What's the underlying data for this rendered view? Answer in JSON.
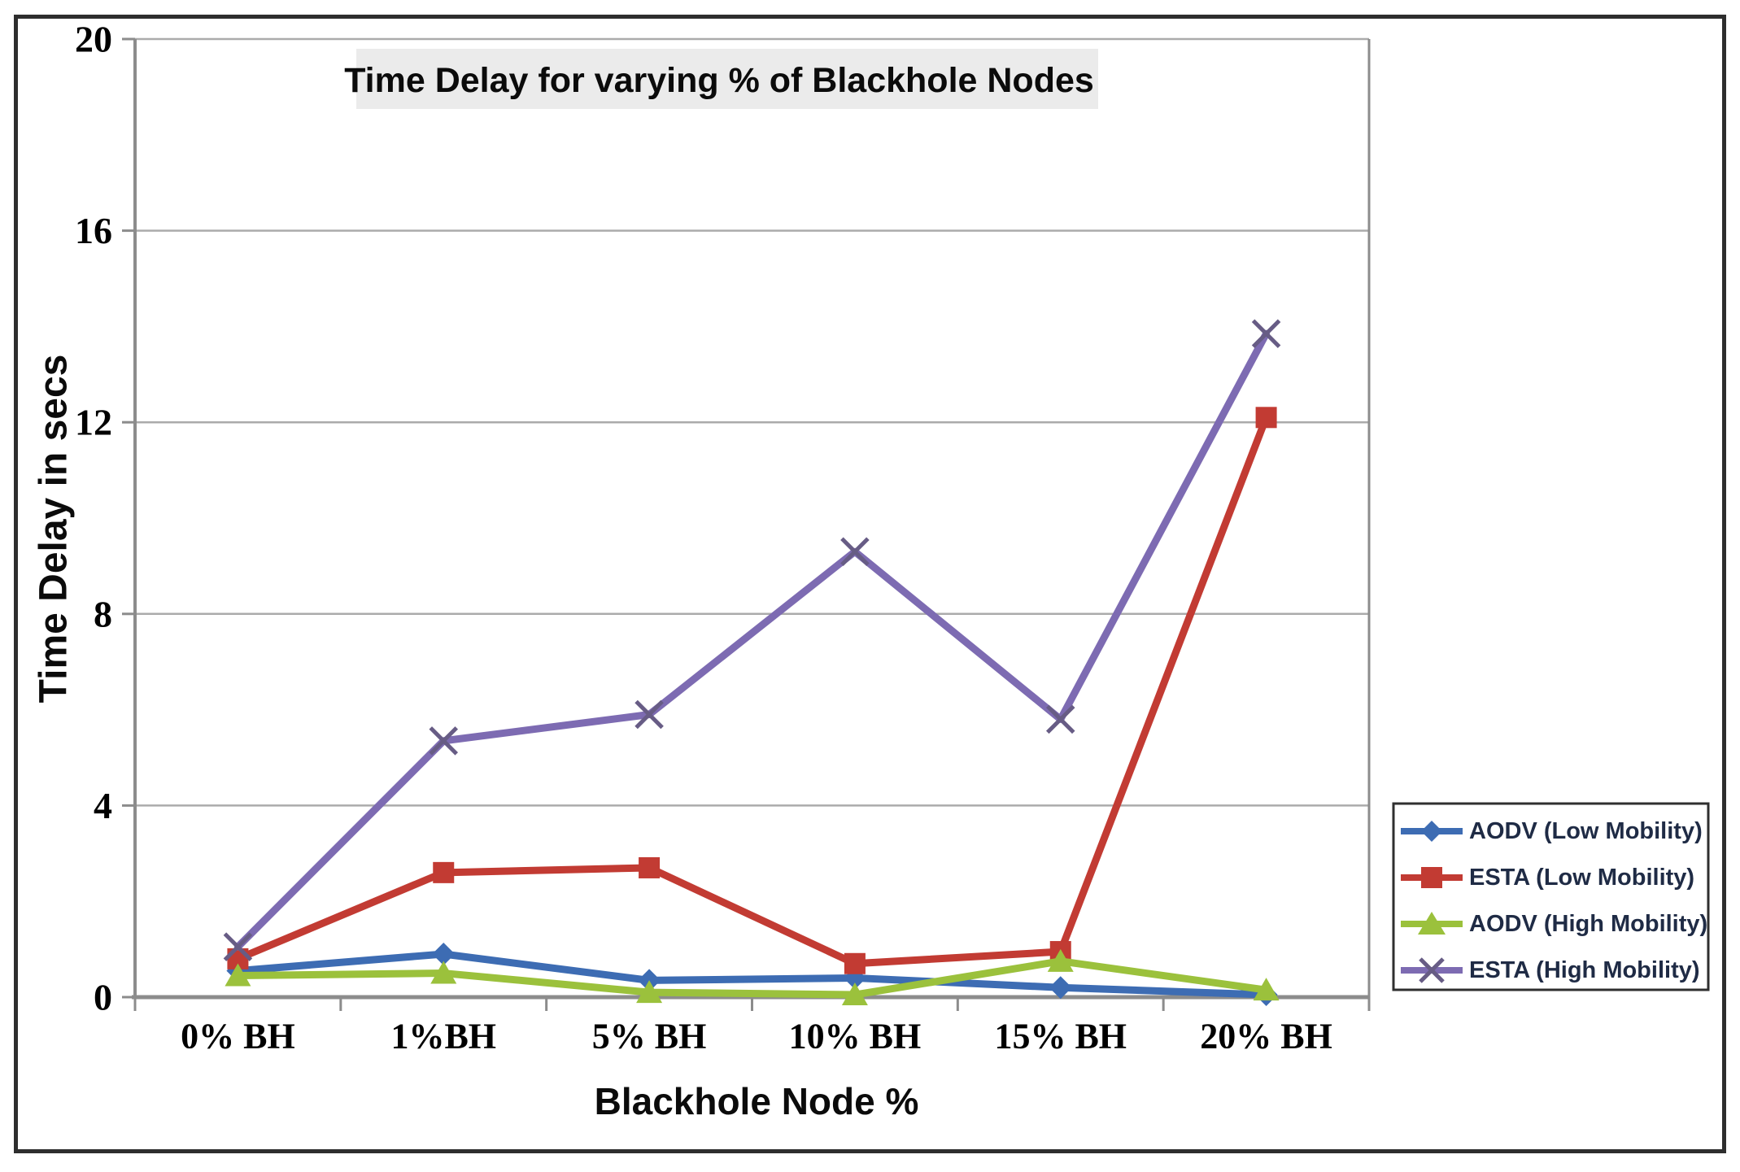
{
  "figure": {
    "title": "Time Delay for varying % of Blackhole Nodes",
    "x_axis_title": "Blackhole Node %",
    "y_axis_title": "Time Delay in secs"
  },
  "chart_data": {
    "type": "line",
    "title": "Time Delay for varying % of Blackhole Nodes",
    "xlabel": "Blackhole Node %",
    "ylabel": "Time Delay in secs",
    "ylim": [
      0,
      20
    ],
    "y_ticks": [
      0,
      4,
      8,
      12,
      16,
      20
    ],
    "grid": true,
    "legend_position": "right",
    "categories": [
      "0% BH",
      "1%BH",
      "5% BH",
      "10% BH",
      "15% BH",
      "20% BH"
    ],
    "series": [
      {
        "name": "AODV (Low Mobility)",
        "color": "#3d6cb3",
        "marker": "diamond",
        "values": [
          0.55,
          0.9,
          0.35,
          0.4,
          0.2,
          0.05
        ]
      },
      {
        "name": "ESTA (Low Mobility)",
        "color": "#c23b33",
        "marker": "square",
        "values": [
          0.8,
          2.6,
          2.7,
          0.7,
          0.95,
          12.1
        ]
      },
      {
        "name": "AODV (High Mobility)",
        "color": "#9bc13c",
        "marker": "triangle",
        "values": [
          0.45,
          0.5,
          0.1,
          0.05,
          0.75,
          0.15
        ]
      },
      {
        "name": "ESTA (High Mobility)",
        "color": "#7d6bb2",
        "marker": "x",
        "marker_color": "#675c85",
        "values": [
          1.05,
          5.35,
          5.9,
          9.3,
          5.8,
          13.85
        ]
      }
    ],
    "colors": {
      "gridline": "#ababab",
      "axis": "#8c8c8c",
      "title_background": "#ebebeb",
      "legend_border": "#2f2f2f",
      "legend_text": "#1f2b45",
      "tick_text": "#000000"
    }
  }
}
